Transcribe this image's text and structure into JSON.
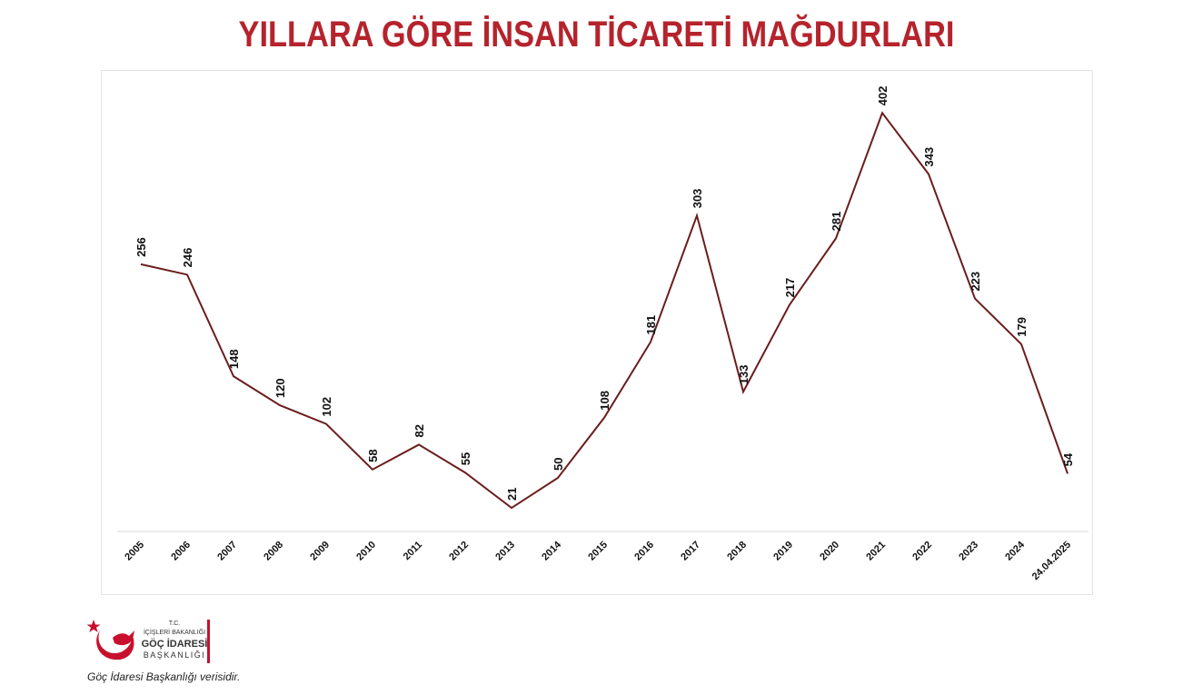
{
  "title": "YILLARA GÖRE İNSAN TİCARETİ MAĞDURLARI",
  "logo": {
    "line1": "T.C.",
    "line2": "İÇİŞLERİ BAKANLIĞI",
    "line3": "GÖÇ İDARESİ",
    "line4": "BAŞKANLIĞI"
  },
  "source_note": "Göç İdaresi Başkanlığı verisidir.",
  "colors": {
    "title": "#b5232c",
    "line": "#6b1d1d",
    "logo_red": "#c8102e"
  },
  "chart_data": {
    "type": "line",
    "categories": [
      "2005",
      "2006",
      "2007",
      "2008",
      "2009",
      "2010",
      "2011",
      "2012",
      "2013",
      "2014",
      "2015",
      "2016",
      "2017",
      "2018",
      "2019",
      "2020",
      "2021",
      "2022",
      "2023",
      "2024",
      "24.04.2025"
    ],
    "values": [
      256,
      246,
      148,
      120,
      102,
      58,
      82,
      55,
      21,
      50,
      108,
      181,
      303,
      133,
      217,
      281,
      402,
      343,
      223,
      179,
      54
    ],
    "ylim": [
      0,
      420
    ],
    "grid": false,
    "legend": "none"
  }
}
